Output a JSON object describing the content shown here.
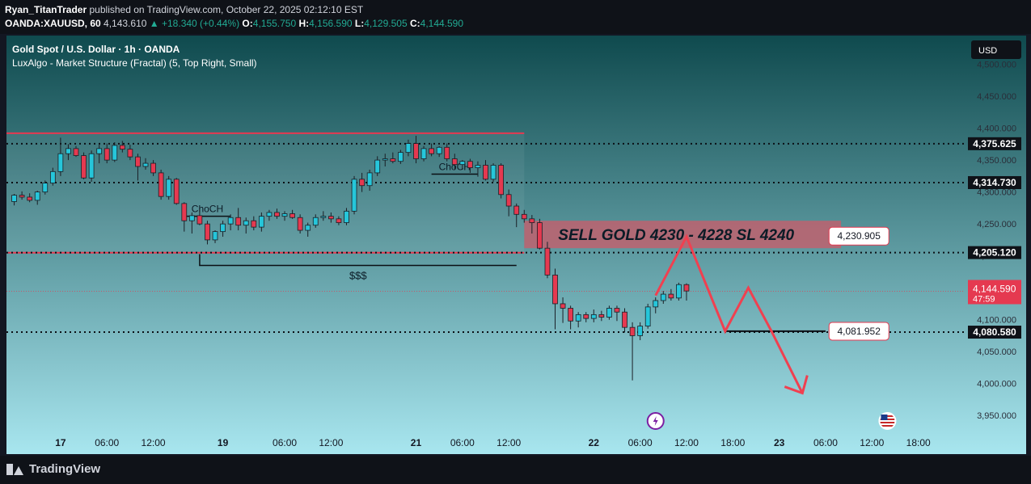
{
  "header": {
    "author": "Ryan_TitanTrader",
    "published_text": "published on TradingView.com, October 22, 2025 02:12:10 EST",
    "symbol": "OANDA:XAUUSD, 60",
    "last_price": "4,143.610",
    "change_arrow": "▲",
    "change": "+18.340 (+0.44%)",
    "open_label": "O:",
    "open": "4,155.750",
    "high_label": "H:",
    "high": "4,156.590",
    "low_label": "L:",
    "low": "4,129.505",
    "close_label": "C:",
    "close": "4,144.590"
  },
  "footer": {
    "brand": "TradingView",
    "logo_icon": "tradingview-logo-icon"
  },
  "colors": {
    "bg_top": "#0f4a4e",
    "bg_bottom": "#a8e6ef",
    "up": "#26c6da",
    "down": "#e53950",
    "zone": "#c0616f",
    "line": "#e53950",
    "arrow": "#f04050"
  },
  "chart_data": {
    "type": "candlestick",
    "title": "Gold Spot / U.S. Dollar · 1h · OANDA",
    "indicator": "LuxAlgo - Market Structure (Fractal) (5, Top Right, Small)",
    "currency": "USD",
    "ylim": [
      3925,
      4545
    ],
    "xlim": [
      0,
      124
    ],
    "y_ticks": [
      "4,500.000",
      "4,450.000",
      "4,400.000",
      "4,350.000",
      "4,300.000",
      "4,250.000",
      "4,200.000",
      "4,150.000",
      "4,100.000",
      "4,050.000",
      "4,000.000",
      "3,950.000"
    ],
    "y_tick_values": [
      4500,
      4450,
      4400,
      4350,
      4300,
      4250,
      4200,
      4150,
      4100,
      4050,
      4000,
      3950
    ],
    "x_ticks": [
      {
        "label": "17",
        "i": 7,
        "bold": true
      },
      {
        "label": "06:00",
        "i": 13
      },
      {
        "label": "12:00",
        "i": 19
      },
      {
        "label": "19",
        "i": 28,
        "bold": true
      },
      {
        "label": "06:00",
        "i": 36
      },
      {
        "label": "12:00",
        "i": 42
      },
      {
        "label": "21",
        "i": 53,
        "bold": true
      },
      {
        "label": "06:00",
        "i": 59
      },
      {
        "label": "12:00",
        "i": 65
      },
      {
        "label": "22",
        "i": 76,
        "bold": true
      },
      {
        "label": "06:00",
        "i": 82
      },
      {
        "label": "12:00",
        "i": 88
      },
      {
        "label": "18:00",
        "i": 94
      },
      {
        "label": "23",
        "i": 100,
        "bold": true
      },
      {
        "label": "06:00",
        "i": 106
      },
      {
        "label": "12:00",
        "i": 112
      },
      {
        "label": "18:00",
        "i": 118
      }
    ],
    "candles": [
      [
        4285,
        4297,
        4279,
        4295
      ],
      [
        4295,
        4301,
        4288,
        4292
      ],
      [
        4292,
        4298,
        4284,
        4287
      ],
      [
        4287,
        4302,
        4280,
        4300
      ],
      [
        4300,
        4318,
        4296,
        4314
      ],
      [
        4314,
        4338,
        4310,
        4332
      ],
      [
        4332,
        4385,
        4325,
        4360
      ],
      [
        4360,
        4375,
        4350,
        4368
      ],
      [
        4368,
        4372,
        4355,
        4357
      ],
      [
        4357,
        4362,
        4320,
        4322
      ],
      [
        4322,
        4365,
        4316,
        4360
      ],
      [
        4360,
        4374,
        4345,
        4368
      ],
      [
        4368,
        4376,
        4345,
        4350
      ],
      [
        4350,
        4378,
        4347,
        4373
      ],
      [
        4373,
        4380,
        4362,
        4367
      ],
      [
        4367,
        4374,
        4350,
        4355
      ],
      [
        4355,
        4360,
        4318,
        4340
      ],
      [
        4340,
        4353,
        4335,
        4345
      ],
      [
        4345,
        4350,
        4325,
        4330
      ],
      [
        4330,
        4335,
        4288,
        4293
      ],
      [
        4293,
        4325,
        4288,
        4320
      ],
      [
        4320,
        4322,
        4280,
        4282
      ],
      [
        4282,
        4284,
        4238,
        4255
      ],
      [
        4255,
        4268,
        4235,
        4263
      ],
      [
        4263,
        4275,
        4248,
        4250
      ],
      [
        4250,
        4255,
        4218,
        4225
      ],
      [
        4225,
        4240,
        4220,
        4238
      ],
      [
        4238,
        4255,
        4230,
        4250
      ],
      [
        4250,
        4265,
        4240,
        4260
      ],
      [
        4260,
        4275,
        4240,
        4248
      ],
      [
        4248,
        4260,
        4235,
        4255
      ],
      [
        4255,
        4262,
        4240,
        4245
      ],
      [
        4245,
        4268,
        4238,
        4262
      ],
      [
        4262,
        4272,
        4255,
        4268
      ],
      [
        4268,
        4274,
        4258,
        4262
      ],
      [
        4262,
        4270,
        4255,
        4266
      ],
      [
        4266,
        4272,
        4258,
        4260
      ],
      [
        4260,
        4265,
        4235,
        4240
      ],
      [
        4240,
        4252,
        4230,
        4248
      ],
      [
        4248,
        4265,
        4244,
        4260
      ],
      [
        4260,
        4270,
        4255,
        4262
      ],
      [
        4262,
        4268,
        4252,
        4258
      ],
      [
        4258,
        4262,
        4248,
        4252
      ],
      [
        4252,
        4275,
        4248,
        4270
      ],
      [
        4270,
        4325,
        4265,
        4320
      ],
      [
        4320,
        4330,
        4300,
        4310
      ],
      [
        4310,
        4335,
        4302,
        4330
      ],
      [
        4330,
        4356,
        4325,
        4350
      ],
      [
        4350,
        4360,
        4340,
        4352
      ],
      [
        4352,
        4362,
        4345,
        4348
      ],
      [
        4348,
        4366,
        4344,
        4362
      ],
      [
        4362,
        4382,
        4356,
        4376
      ],
      [
        4376,
        4388,
        4345,
        4352
      ],
      [
        4352,
        4372,
        4348,
        4368
      ],
      [
        4368,
        4376,
        4356,
        4360
      ],
      [
        4360,
        4372,
        4355,
        4370
      ],
      [
        4370,
        4376,
        4348,
        4352
      ],
      [
        4352,
        4360,
        4335,
        4343
      ],
      [
        4343,
        4350,
        4335,
        4348
      ],
      [
        4348,
        4352,
        4330,
        4338
      ],
      [
        4338,
        4348,
        4324,
        4342
      ],
      [
        4342,
        4350,
        4318,
        4320
      ],
      [
        4320,
        4345,
        4316,
        4342
      ],
      [
        4342,
        4345,
        4290,
        4296
      ],
      [
        4296,
        4304,
        4262,
        4278
      ],
      [
        4278,
        4282,
        4245,
        4265
      ],
      [
        4265,
        4272,
        4252,
        4258
      ],
      [
        4258,
        4264,
        4235,
        4252
      ],
      [
        4252,
        4258,
        4210,
        4212
      ],
      [
        4212,
        4222,
        4165,
        4170
      ],
      [
        4170,
        4180,
        4085,
        4125
      ],
      [
        4125,
        4135,
        4095,
        4118
      ],
      [
        4118,
        4122,
        4085,
        4098
      ],
      [
        4098,
        4112,
        4088,
        4108
      ],
      [
        4108,
        4112,
        4096,
        4102
      ],
      [
        4102,
        4116,
        4096,
        4108
      ],
      [
        4108,
        4114,
        4098,
        4104
      ],
      [
        4104,
        4122,
        4100,
        4118
      ],
      [
        4118,
        4122,
        4098,
        4112
      ],
      [
        4112,
        4118,
        4080,
        4088
      ],
      [
        4088,
        4096,
        4005,
        4075
      ],
      [
        4075,
        4096,
        4068,
        4090
      ],
      [
        4090,
        4125,
        4086,
        4120
      ],
      [
        4120,
        4135,
        4110,
        4130
      ],
      [
        4130,
        4145,
        4125,
        4140
      ],
      [
        4140,
        4148,
        4130,
        4134
      ],
      [
        4134,
        4158,
        4130,
        4155
      ],
      [
        4155,
        4157,
        4130,
        4145
      ]
    ],
    "plot_start_index": 1,
    "horizontal_levels": [
      {
        "label": "4,375.625",
        "value": 4375.625,
        "style": "dotted",
        "from_i": 0
      },
      {
        "label": "4,314.730",
        "value": 4314.73,
        "style": "dotted",
        "from_i": 0
      },
      {
        "label": "4,205.120",
        "value": 4205.12,
        "style": "dotted",
        "from_i": 0
      },
      {
        "label": "4,080.580",
        "value": 4080.58,
        "style": "dotted",
        "from_i": 0
      },
      {
        "label": "4,144.590",
        "value": 4144.59,
        "style": "current",
        "from_i": 0,
        "countdown": "47:59"
      }
    ],
    "range_box": {
      "i0": 0,
      "i1": 67,
      "y_top": 4392,
      "y_bot": 4205
    },
    "sell_zone": {
      "i0": 67,
      "i1": 108,
      "y_top": 4255,
      "y_bot": 4212,
      "text": "SELL GOLD 4230 - 4228 SL 4240"
    },
    "callouts": [
      {
        "label": "4,230.905",
        "value": 4230.905,
        "i": 110
      },
      {
        "label": "4,081.952",
        "value": 4081.952,
        "i": 110
      }
    ],
    "support_segment": {
      "i0": 93,
      "i1": 106,
      "value": 4082
    },
    "liquidity_line": {
      "i0": 25,
      "i1": 66,
      "value": 4185,
      "text": "$$$"
    },
    "choch": [
      {
        "text": "ChoCH",
        "i0": 23,
        "i1": 29,
        "value": 4262
      },
      {
        "text": "ChoCH",
        "i0": 55,
        "i1": 61,
        "value": 4328
      }
    ],
    "projection_path": [
      [
        84,
        4138
      ],
      [
        88,
        4230
      ],
      [
        93,
        4082
      ],
      [
        96,
        4150
      ],
      [
        99,
        4082
      ],
      [
        103,
        3985
      ]
    ],
    "arrow_head_at": [
      103,
      3985
    ],
    "events": [
      {
        "i": 84,
        "icon": "lightning-event-icon"
      },
      {
        "i": 114,
        "icon": "us-flag-event-icon"
      }
    ]
  }
}
